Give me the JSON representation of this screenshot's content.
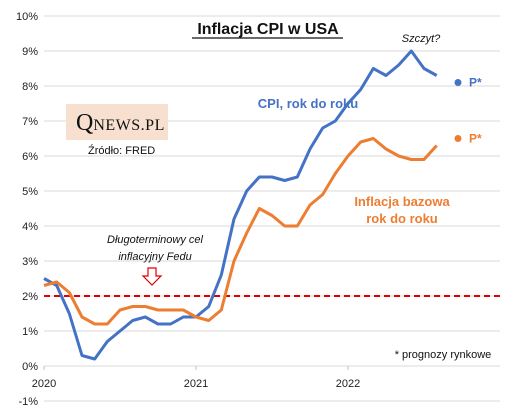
{
  "chart_data": {
    "type": "line",
    "title": "Inflacja CPI w USA",
    "y_ticks": [
      "10%",
      "9%",
      "8%",
      "7%",
      "6%",
      "5%",
      "4%",
      "3%",
      "2%",
      "1%",
      "0%",
      "-1%"
    ],
    "x_ticks": [
      "2020",
      "2021",
      "2022"
    ],
    "ylim": [
      -1,
      10
    ],
    "grid": "horizontal",
    "x_start": "2020-01",
    "x_end": "2022-12",
    "series": [
      {
        "name": "CPI, rok do roku",
        "color": "#4472c4",
        "months": [
          "2020-01",
          "2020-02",
          "2020-03",
          "2020-04",
          "2020-05",
          "2020-06",
          "2020-07",
          "2020-08",
          "2020-09",
          "2020-10",
          "2020-11",
          "2020-12",
          "2021-01",
          "2021-02",
          "2021-03",
          "2021-04",
          "2021-05",
          "2021-06",
          "2021-07",
          "2021-08",
          "2021-09",
          "2021-10",
          "2021-11",
          "2021-12",
          "2022-01",
          "2022-02",
          "2022-03",
          "2022-04",
          "2022-05",
          "2022-06",
          "2022-07",
          "2022-08"
        ],
        "values": [
          2.5,
          2.3,
          1.5,
          0.3,
          0.2,
          0.7,
          1.0,
          1.3,
          1.4,
          1.2,
          1.2,
          1.4,
          1.4,
          1.7,
          2.6,
          4.2,
          5.0,
          5.4,
          5.4,
          5.3,
          5.4,
          6.2,
          6.8,
          7.0,
          7.5,
          7.9,
          8.5,
          8.3,
          8.6,
          9.0,
          8.5,
          8.3
        ],
        "projection": 8.1,
        "projection_label": "P*"
      },
      {
        "name": "Inflacja bazowa rok do roku",
        "color": "#ed7d31",
        "months": [
          "2020-01",
          "2020-02",
          "2020-03",
          "2020-04",
          "2020-05",
          "2020-06",
          "2020-07",
          "2020-08",
          "2020-09",
          "2020-10",
          "2020-11",
          "2020-12",
          "2021-01",
          "2021-02",
          "2021-03",
          "2021-04",
          "2021-05",
          "2021-06",
          "2021-07",
          "2021-08",
          "2021-09",
          "2021-10",
          "2021-11",
          "2021-12",
          "2022-01",
          "2022-02",
          "2022-03",
          "2022-04",
          "2022-05",
          "2022-06",
          "2022-07",
          "2022-08"
        ],
        "values": [
          2.3,
          2.4,
          2.1,
          1.4,
          1.2,
          1.2,
          1.6,
          1.7,
          1.7,
          1.6,
          1.6,
          1.6,
          1.4,
          1.3,
          1.6,
          3.0,
          3.8,
          4.5,
          4.3,
          4.0,
          4.0,
          4.6,
          4.9,
          5.5,
          6.0,
          6.4,
          6.5,
          6.2,
          6.0,
          5.9,
          5.9,
          6.3
        ],
        "projection": 6.5,
        "projection_label": "P*"
      }
    ],
    "reference_line": {
      "value": 2,
      "color": "#e00000",
      "style": "dashed"
    },
    "labels": {
      "cpi_label": "CPI, rok do roku",
      "core_label_1": "Inflacja bazowa",
      "core_label_2": "rok do roku",
      "peak": "Szczyt?",
      "fed_target_1": "Długoterminowy cel",
      "fed_target_2": "inflacyjny Fedu",
      "footnote": "* prognozy rynkowe"
    }
  },
  "brand": {
    "q": "Q",
    "rest": "NEWS.PL",
    "source": "Źródło: FRED"
  }
}
